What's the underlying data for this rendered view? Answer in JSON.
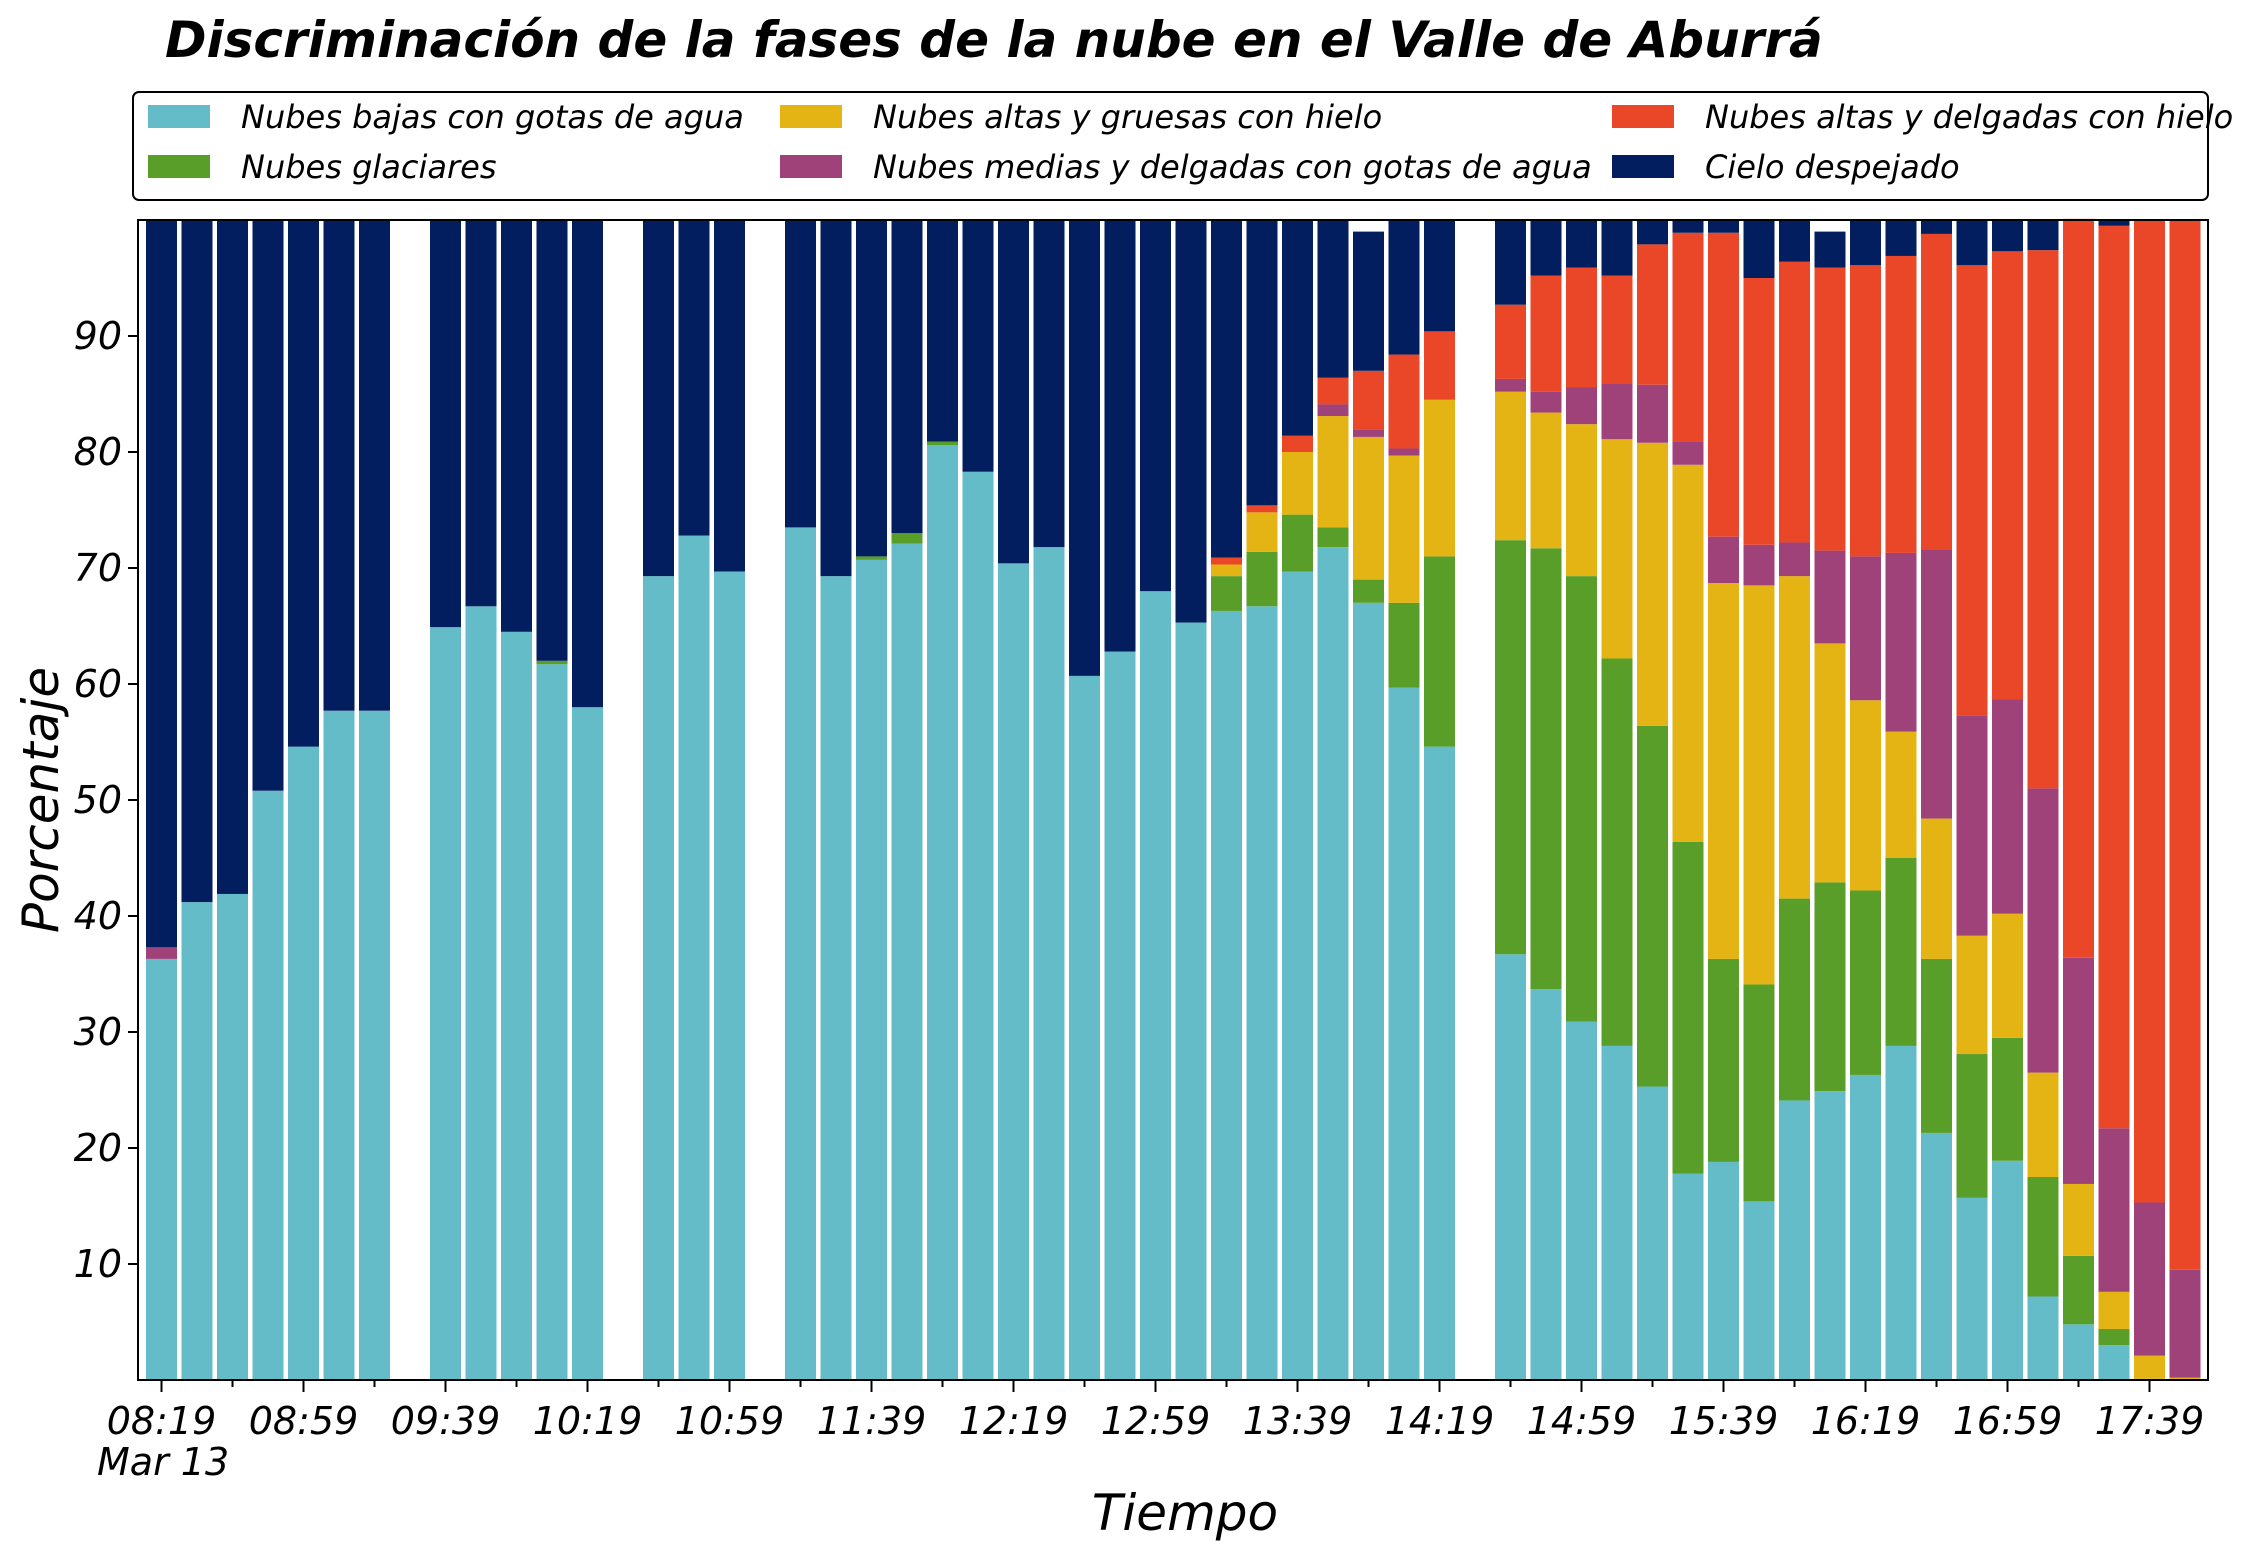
{
  "chart_data": {
    "type": "bar",
    "stacked": true,
    "title": "Discriminación de la fases de la nube en el Valle de Aburrá",
    "xlabel": "Tiempo",
    "ylabel": "Porcentaje",
    "ylim": [
      0,
      100
    ],
    "yticks": [
      10,
      20,
      30,
      40,
      50,
      60,
      70,
      80,
      90
    ],
    "grid": false,
    "legend_position": "top",
    "x_date_label": "Mar 13",
    "x": [
      "08:19",
      "08:29",
      "08:39",
      "08:49",
      "08:59",
      "09:09",
      "09:19",
      "09:29",
      "09:39",
      "09:49",
      "09:59",
      "10:09",
      "10:19",
      "10:29",
      "10:39",
      "10:49",
      "10:59",
      "11:09",
      "11:19",
      "11:29",
      "11:39",
      "11:49",
      "11:59",
      "12:09",
      "12:19",
      "12:29",
      "12:39",
      "12:49",
      "12:59",
      "13:09",
      "13:19",
      "13:29",
      "13:39",
      "13:49",
      "13:59",
      "14:09",
      "14:19",
      "14:29",
      "14:39",
      "14:49",
      "14:59",
      "15:09",
      "15:19",
      "15:29",
      "15:39",
      "15:49",
      "15:59",
      "16:09",
      "16:19",
      "16:29",
      "16:39",
      "16:49",
      "16:59",
      "17:09",
      "17:19",
      "17:29",
      "17:39",
      "17:49"
    ],
    "x_tick_labels": [
      "08:19",
      "08:59",
      "09:39",
      "10:19",
      "10:59",
      "11:39",
      "12:19",
      "12:59",
      "13:39",
      "14:19",
      "14:59",
      "15:39",
      "16:19",
      "16:59",
      "17:39"
    ],
    "series": [
      {
        "name": "Nubes bajas con gotas de agua",
        "color": "#63BCC8",
        "values": [
          36.3,
          41.2,
          41.9,
          50.8,
          54.6,
          57.7,
          57.7,
          null,
          64.9,
          66.7,
          64.5,
          61.7,
          58.0,
          null,
          69.3,
          72.8,
          69.7,
          null,
          73.5,
          69.3,
          70.7,
          72.1,
          80.6,
          78.3,
          70.4,
          71.8,
          60.7,
          62.8,
          68.0,
          65.3,
          66.3,
          66.7,
          69.7,
          71.8,
          67.0,
          59.7,
          54.6,
          null,
          36.7,
          33.7,
          30.9,
          28.8,
          25.3,
          17.8,
          18.8,
          15.4,
          24.1,
          24.9,
          26.3,
          28.8,
          21.3,
          15.7,
          18.9,
          7.2,
          4.8,
          3.0,
          0.1,
          0.0
        ]
      },
      {
        "name": "Nubes glaciares",
        "color": "#5A9E2A",
        "values": [
          0,
          0,
          0,
          0,
          0,
          0,
          0,
          null,
          0,
          0,
          0,
          0.3,
          0,
          null,
          0,
          0,
          0,
          null,
          0,
          0,
          0.3,
          0.9,
          0.3,
          0,
          0,
          0,
          0,
          0,
          0,
          0,
          3.0,
          4.7,
          4.9,
          1.7,
          2.0,
          7.3,
          16.4,
          null,
          35.7,
          38.0,
          38.4,
          33.4,
          31.1,
          28.6,
          17.5,
          18.7,
          17.4,
          18.0,
          15.9,
          16.2,
          15.0,
          12.4,
          10.6,
          10.3,
          5.9,
          1.4,
          0,
          0
        ]
      },
      {
        "name": "Nubes altas y gruesas con hielo",
        "color": "#E3B413",
        "values": [
          0,
          0,
          0,
          0,
          0,
          0,
          0,
          null,
          0,
          0,
          0,
          0,
          0,
          null,
          0,
          0,
          0,
          null,
          0,
          0,
          0,
          0,
          0,
          0,
          0,
          0,
          0,
          0,
          0,
          0,
          1.0,
          3.4,
          5.4,
          9.6,
          12.3,
          12.7,
          13.5,
          null,
          12.8,
          11.7,
          13.1,
          18.9,
          24.4,
          32.5,
          32.4,
          34.4,
          27.8,
          20.6,
          16.4,
          10.9,
          12.1,
          10.2,
          10.7,
          9.0,
          6.2,
          3.2,
          2.0,
          0.2
        ]
      },
      {
        "name": "Nubes medias y delgadas con gotas de agua",
        "color": "#A0427A",
        "values": [
          1.0,
          0,
          0,
          0,
          0,
          0,
          0,
          null,
          0,
          0,
          0,
          0,
          0,
          null,
          0,
          0,
          0,
          null,
          0,
          0,
          0,
          0,
          0,
          0,
          0,
          0,
          0,
          0,
          0,
          0,
          0,
          0,
          0,
          1.0,
          0.6,
          0.6,
          0,
          null,
          1.1,
          1.8,
          3.2,
          4.8,
          5.0,
          2.0,
          4.0,
          3.5,
          2.9,
          8.0,
          12.4,
          15.4,
          23.2,
          19.0,
          18.5,
          24.5,
          19.5,
          14.1,
          13.2,
          9.3
        ]
      },
      {
        "name": "Nubes altas y delgadas con hielo",
        "color": "#EA4628",
        "values": [
          0,
          0,
          0,
          0,
          0,
          0,
          0,
          null,
          0,
          0,
          0,
          0,
          0,
          null,
          0,
          0,
          0,
          null,
          0,
          0,
          0,
          0,
          0,
          0,
          0,
          0,
          0,
          0,
          0,
          0,
          0.6,
          0.6,
          1.4,
          2.3,
          5.1,
          8.1,
          5.9,
          null,
          6.4,
          10.0,
          10.3,
          9.3,
          12.1,
          18.0,
          26.2,
          23.0,
          24.2,
          24.4,
          25.1,
          25.6,
          27.2,
          38.8,
          38.6,
          46.4,
          63.7,
          77.8,
          84.7,
          90.5
        ]
      },
      {
        "name": "Cielo despejado",
        "color": "#031E5E",
        "values": [
          62.7,
          58.8,
          58.1,
          49.2,
          45.4,
          42.3,
          42.3,
          null,
          35.1,
          33.3,
          35.5,
          38.0,
          42.0,
          null,
          30.7,
          27.2,
          30.3,
          null,
          26.5,
          30.7,
          29.0,
          27.0,
          19.1,
          21.7,
          29.6,
          28.2,
          39.3,
          37.2,
          32.0,
          34.7,
          29.1,
          24.6,
          18.6,
          13.6,
          12.0,
          11.6,
          9.6,
          null,
          7.3,
          4.8,
          4.1,
          4.8,
          2.1,
          1.1,
          1.1,
          5.0,
          3.6,
          3.1,
          3.9,
          3.1,
          1.2,
          3.9,
          2.7,
          2.6,
          0,
          0.5,
          0,
          0
        ]
      }
    ]
  }
}
